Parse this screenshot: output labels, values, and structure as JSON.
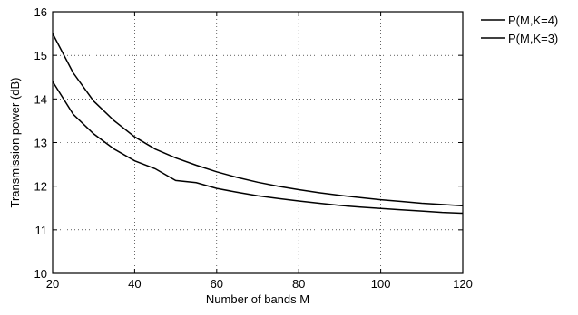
{
  "chart_data": {
    "type": "line",
    "title": "",
    "xlabel": "Number of bands M",
    "ylabel": "Transmission power (dB)",
    "xlim": [
      20,
      120
    ],
    "ylim": [
      10,
      16
    ],
    "xticks": [
      20,
      40,
      60,
      80,
      100,
      120
    ],
    "yticks": [
      10,
      11,
      12,
      13,
      14,
      15,
      16
    ],
    "xtick_labels": [
      "20",
      "40",
      "60",
      "80",
      "100",
      "120"
    ],
    "ytick_labels": [
      "10",
      "11",
      "12",
      "13",
      "14",
      "15",
      "16"
    ],
    "grid": "dotted",
    "legend_position": "top-right, outside plot",
    "series": [
      {
        "name": "P(M,K=4)",
        "x": [
          20,
          25,
          30,
          35,
          40,
          45,
          50,
          55,
          60,
          65,
          70,
          75,
          80,
          85,
          90,
          95,
          100,
          105,
          110,
          115,
          120
        ],
        "y": [
          15.5,
          14.6,
          13.95,
          13.5,
          13.13,
          12.85,
          12.65,
          12.48,
          12.33,
          12.2,
          12.09,
          12.0,
          11.92,
          11.85,
          11.79,
          11.74,
          11.69,
          11.65,
          11.61,
          11.58,
          11.55
        ]
      },
      {
        "name": "P(M,K=3)",
        "x": [
          20,
          25,
          30,
          35,
          40,
          45,
          50,
          55,
          60,
          65,
          70,
          75,
          80,
          85,
          90,
          95,
          100,
          105,
          110,
          115,
          120
        ],
        "y": [
          14.4,
          13.65,
          13.2,
          12.85,
          12.58,
          12.4,
          12.13,
          12.08,
          11.95,
          11.86,
          11.78,
          11.72,
          11.66,
          11.61,
          11.56,
          11.52,
          11.49,
          11.46,
          11.43,
          11.4,
          11.38
        ]
      }
    ]
  }
}
